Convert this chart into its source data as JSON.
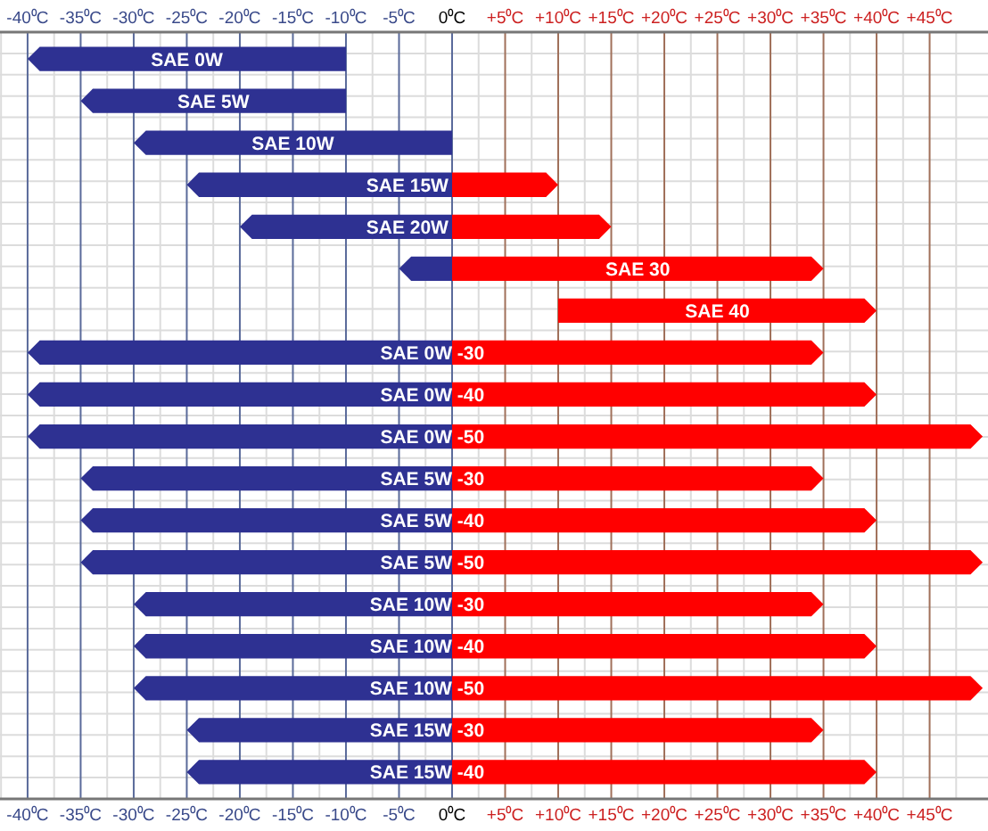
{
  "chart_data": {
    "type": "bar",
    "orientation": "horizontal",
    "grid": true,
    "categories": [
      "SAE 0W",
      "SAE 5W",
      "SAE 10W",
      "SAE 15W",
      "SAE 20W",
      "SAE 30",
      "SAE 40",
      "SAE 0W -30",
      "SAE 0W -40",
      "SAE 0W -50",
      "SAE 5W -30",
      "SAE 5W -40",
      "SAE 5W -50",
      "SAE 10W -30",
      "SAE 10W -40",
      "SAE 10W -50",
      "SAE 15W -30",
      "SAE 15W -40"
    ],
    "series": [
      {
        "color": "#2e3192",
        "base": [
          -40,
          -35,
          -30,
          -25,
          -20,
          -5,
          null,
          -40,
          -40,
          -40,
          -35,
          -35,
          -35,
          -30,
          -30,
          -30,
          -25,
          -25
        ],
        "values": [
          30,
          25,
          30,
          25,
          20,
          5,
          null,
          40,
          40,
          40,
          35,
          35,
          35,
          30,
          30,
          30,
          25,
          25
        ]
      },
      {
        "color": "#ff0000",
        "base": [
          null,
          null,
          null,
          0,
          0,
          0,
          10,
          0,
          0,
          0,
          0,
          0,
          0,
          0,
          0,
          0,
          0,
          0
        ],
        "values": [
          null,
          null,
          null,
          10,
          15,
          35,
          30,
          35,
          40,
          50,
          35,
          40,
          50,
          35,
          40,
          50,
          35,
          40
        ]
      }
    ],
    "xlim": [
      -42.6,
      50.5
    ],
    "xticks": [
      {
        "value": -40,
        "label": "-40⁰C"
      },
      {
        "value": -35,
        "label": "-35⁰C"
      },
      {
        "value": -30,
        "label": "-30⁰C"
      },
      {
        "value": -25,
        "label": "-25⁰C"
      },
      {
        "value": -20,
        "label": "-20⁰C"
      },
      {
        "value": -15,
        "label": "-15⁰C"
      },
      {
        "value": -10,
        "label": "-10⁰C"
      },
      {
        "value": -5,
        "label": "-5⁰C"
      },
      {
        "value": 0,
        "label": "0⁰C"
      },
      {
        "value": 5,
        "label": "+5⁰C"
      },
      {
        "value": 10,
        "label": "+10⁰C"
      },
      {
        "value": 15,
        "label": "+15⁰C"
      },
      {
        "value": 20,
        "label": "+20⁰C"
      },
      {
        "value": 25,
        "label": "+25⁰C"
      },
      {
        "value": 30,
        "label": "+30⁰C"
      },
      {
        "value": 35,
        "label": "+35⁰C"
      },
      {
        "value": 40,
        "label": "+40⁰C"
      },
      {
        "value": 45,
        "label": "+45⁰C"
      }
    ],
    "x2lim": [
      -42.6,
      50.5
    ],
    "x2ticks": [
      {
        "value": -40,
        "label": "-40⁰C"
      },
      {
        "value": -35,
        "label": "-35⁰C"
      },
      {
        "value": -30,
        "label": "-30⁰C"
      },
      {
        "value": -25,
        "label": "-25⁰C"
      },
      {
        "value": -20,
        "label": "-20⁰C"
      },
      {
        "value": -15,
        "label": "-15⁰C"
      },
      {
        "value": -10,
        "label": "-10⁰C"
      },
      {
        "value": -5,
        "label": "-5⁰C"
      },
      {
        "value": 0,
        "label": "0⁰C"
      },
      {
        "value": 5,
        "label": "+5⁰C"
      },
      {
        "value": 10,
        "label": "+10⁰C"
      },
      {
        "value": 15,
        "label": "+15⁰C"
      },
      {
        "value": 20,
        "label": "+20⁰C"
      },
      {
        "value": 25,
        "label": "+25⁰C"
      },
      {
        "value": 30,
        "label": "+30⁰C"
      },
      {
        "value": 35,
        "label": "+35⁰C"
      },
      {
        "value": 40,
        "label": "+40⁰C"
      },
      {
        "value": 45,
        "label": "+45⁰C"
      }
    ]
  }
}
